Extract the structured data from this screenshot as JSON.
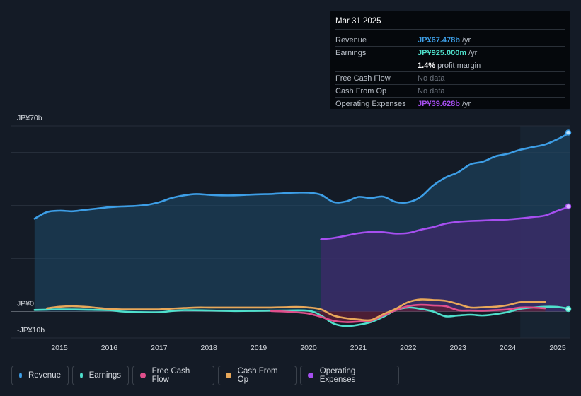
{
  "tooltip": {
    "date": "Mar 31 2025",
    "rows": [
      {
        "label": "Revenue",
        "value": "JP¥67.478b",
        "unit": "/yr",
        "color": "#3d9ee6"
      },
      {
        "label": "Earnings",
        "value": "JP¥925.000m",
        "unit": "/yr",
        "color": "#4fe0cc"
      },
      {
        "label": "",
        "value": "1.4%",
        "unit": "profit margin",
        "color": "#ffffff"
      },
      {
        "label": "Free Cash Flow",
        "value": "No data",
        "unit": "",
        "color": "#6b727c"
      },
      {
        "label": "Cash From Op",
        "value": "No data",
        "unit": "",
        "color": "#6b727c"
      },
      {
        "label": "Operating Expenses",
        "value": "JP¥39.628b",
        "unit": "/yr",
        "color": "#a64ff0"
      }
    ]
  },
  "legend": [
    {
      "label": "Revenue",
      "color": "#3d9ee6"
    },
    {
      "label": "Earnings",
      "color": "#4fe0cc"
    },
    {
      "label": "Free Cash Flow",
      "color": "#e04f8c"
    },
    {
      "label": "Cash From Op",
      "color": "#e8a85a"
    },
    {
      "label": "Operating Expenses",
      "color": "#a64ff0"
    }
  ],
  "chart_data": {
    "type": "area",
    "title": "",
    "ylim": [
      -10,
      70
    ],
    "y_tick_labels": [
      "JP¥70b",
      "JP¥0",
      "-JP¥10b"
    ],
    "y_tick_values": [
      70,
      0,
      -10
    ],
    "x_tick_labels": [
      "2015",
      "2016",
      "2017",
      "2018",
      "2019",
      "2020",
      "2021",
      "2022",
      "2023",
      "2024",
      "2025"
    ],
    "x_tick_values": [
      2015,
      2016,
      2017,
      2018,
      2019,
      2020,
      2021,
      2022,
      2023,
      2024,
      2025
    ],
    "highlight_from": 2024.25,
    "series": [
      {
        "name": "Revenue",
        "color": "#3d9ee6",
        "x": [
          2014.5,
          2014.75,
          2015.0,
          2015.25,
          2015.5,
          2015.75,
          2016.0,
          2016.25,
          2016.5,
          2016.75,
          2017.0,
          2017.25,
          2017.5,
          2017.75,
          2018.0,
          2018.25,
          2018.5,
          2018.75,
          2019.0,
          2019.25,
          2019.5,
          2019.75,
          2020.0,
          2020.25,
          2020.5,
          2020.75,
          2021.0,
          2021.25,
          2021.5,
          2021.75,
          2022.0,
          2022.25,
          2022.5,
          2022.75,
          2023.0,
          2023.25,
          2023.5,
          2023.75,
          2024.0,
          2024.25,
          2024.5,
          2024.75,
          2025.0,
          2025.25
        ],
        "values": [
          35,
          37.5,
          38,
          37.8,
          38.3,
          38.8,
          39.3,
          39.6,
          39.8,
          40.2,
          41.2,
          42.8,
          43.8,
          44.3,
          44,
          43.8,
          43.8,
          44,
          44.2,
          44.3,
          44.6,
          44.8,
          44.8,
          44,
          41.3,
          41.5,
          43.2,
          42.8,
          43.3,
          41.3,
          41.2,
          43.2,
          47.5,
          50.5,
          52.5,
          55.5,
          56.5,
          58.5,
          59.5,
          61,
          62,
          63,
          65,
          67.478
        ]
      },
      {
        "name": "Operating Expenses",
        "color": "#a64ff0",
        "x": [
          2020.25,
          2020.5,
          2020.75,
          2021.0,
          2021.25,
          2021.5,
          2021.75,
          2022.0,
          2022.25,
          2022.5,
          2022.75,
          2023.0,
          2023.25,
          2023.5,
          2023.75,
          2024.0,
          2024.25,
          2024.5,
          2024.75,
          2025.0,
          2025.25
        ],
        "values": [
          27.2,
          27.7,
          28.6,
          29.5,
          30,
          29.9,
          29.4,
          29.6,
          30.8,
          31.8,
          33.1,
          33.8,
          34.1,
          34.3,
          34.5,
          34.7,
          35.1,
          35.6,
          36.2,
          38,
          39.628
        ]
      },
      {
        "name": "Earnings",
        "color": "#4fe0cc",
        "x": [
          2014.5,
          2014.75,
          2015.0,
          2015.5,
          2016.0,
          2016.25,
          2016.5,
          2017.0,
          2017.25,
          2017.5,
          2018.0,
          2018.5,
          2019.0,
          2019.5,
          2020.0,
          2020.25,
          2020.5,
          2020.75,
          2021.0,
          2021.25,
          2021.5,
          2021.75,
          2022.0,
          2022.25,
          2022.5,
          2022.75,
          2023.0,
          2023.25,
          2023.5,
          2023.75,
          2024.0,
          2024.25,
          2024.5,
          2024.75,
          2025.0,
          2025.25
        ],
        "values": [
          0.6,
          0.7,
          0.8,
          0.7,
          0.5,
          0.0,
          -0.2,
          -0.3,
          0.2,
          0.5,
          0.4,
          0.2,
          0.3,
          0.4,
          0.3,
          -1.5,
          -4.5,
          -5.5,
          -5.0,
          -4.0,
          -2.0,
          0.5,
          1.5,
          1.0,
          0.0,
          -1.8,
          -1.5,
          -1.2,
          -1.5,
          -1.0,
          -0.2,
          1.0,
          1.5,
          1.8,
          1.7,
          0.925
        ]
      },
      {
        "name": "Free Cash Flow",
        "color": "#e04f8c",
        "x": [
          2019.25,
          2019.5,
          2019.75,
          2020.0,
          2020.25,
          2020.5,
          2020.75,
          2021.0,
          2021.25,
          2021.5,
          2021.75,
          2022.0,
          2022.25,
          2022.5,
          2022.75,
          2023.0,
          2023.25,
          2023.5,
          2023.75,
          2024.0,
          2024.25,
          2024.5,
          2024.75
        ],
        "values": [
          0.2,
          0.0,
          -0.3,
          -0.8,
          -2.0,
          -3.5,
          -4.0,
          -3.8,
          -3.5,
          -1.5,
          0.5,
          2.0,
          2.5,
          2.3,
          2.0,
          0.5,
          0.4,
          0.3,
          0.5,
          0.8,
          1.5,
          1.5,
          1.2
        ]
      },
      {
        "name": "Cash From Op",
        "color": "#e8a85a",
        "x": [
          2014.75,
          2015.0,
          2015.25,
          2015.5,
          2015.75,
          2016.0,
          2016.25,
          2016.5,
          2016.75,
          2017.0,
          2017.25,
          2017.5,
          2017.75,
          2018.0,
          2018.25,
          2018.5,
          2018.75,
          2019.0,
          2019.25,
          2019.5,
          2019.75,
          2020.0,
          2020.25,
          2020.5,
          2020.75,
          2021.0,
          2021.25,
          2021.5,
          2021.75,
          2022.0,
          2022.25,
          2022.5,
          2022.75,
          2023.0,
          2023.25,
          2023.5,
          2023.75,
          2024.0,
          2024.25,
          2024.5,
          2024.75
        ],
        "values": [
          1.2,
          1.8,
          2.0,
          1.8,
          1.4,
          1.0,
          0.8,
          0.8,
          0.8,
          0.8,
          1.1,
          1.3,
          1.5,
          1.5,
          1.5,
          1.5,
          1.5,
          1.5,
          1.5,
          1.6,
          1.7,
          1.5,
          0.8,
          -1.5,
          -2.5,
          -3.0,
          -3.2,
          -1.0,
          1.0,
          3.5,
          4.5,
          4.3,
          4.0,
          2.8,
          1.5,
          1.6,
          1.8,
          2.4,
          3.5,
          3.6,
          3.6
        ]
      }
    ]
  }
}
